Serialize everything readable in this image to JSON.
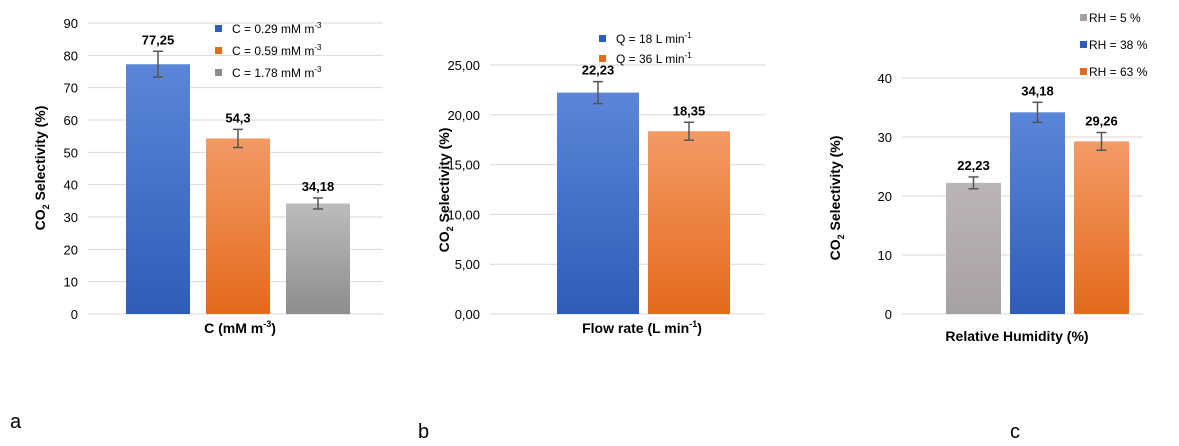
{
  "colors": {
    "blue_top": "#5b86d8",
    "blue_bottom": "#2e5cb8",
    "orange_top": "#f39a66",
    "orange_bottom": "#e46a1c",
    "gray_top": "#bcbcbc",
    "gray_bottom": "#8d8d8d",
    "warmgray_top": "#bcb5b5",
    "warmgray_bottom": "#a8a1a1",
    "grid": "#d9d9d9",
    "axis_text": "#000000",
    "errorbar": "#555555"
  },
  "chart_data": [
    {
      "type": "bar",
      "panel_letter": "a",
      "xlabel": "C (mM m",
      "xlabel_sup": "-3",
      "xlabel_end": ")",
      "ylabel": "CO",
      "ylabel_sub": "2",
      "ylabel_end": " Selectivity (%)",
      "ylim": [
        0,
        90
      ],
      "yticks": [
        "0",
        "10",
        "20",
        "30",
        "40",
        "50",
        "60",
        "70",
        "80",
        "90"
      ],
      "grid": true,
      "legend_position": "top-right",
      "series": [
        {
          "name": "C = 0.29 mM m",
          "name_sup": "-3",
          "value": 77.25,
          "label": "77,25",
          "error": 4.0,
          "color": "blue"
        },
        {
          "name": "C = 0.59 mM m",
          "name_sup": "-3",
          "value": 54.3,
          "label": "54,3",
          "error": 2.8,
          "color": "orange"
        },
        {
          "name": "C = 1.78 mM m",
          "name_sup": "-3",
          "value": 34.18,
          "label": "34,18",
          "error": 1.7,
          "color": "gray"
        }
      ]
    },
    {
      "type": "bar",
      "panel_letter": "b",
      "xlabel": "Flow rate (L min",
      "xlabel_sup": "-1",
      "xlabel_end": ")",
      "ylabel": "CO",
      "ylabel_sub": "2",
      "ylabel_end": " Selectivity (%)",
      "ylim": [
        0,
        25
      ],
      "yticks": [
        "0,00",
        "5,00",
        "10,00",
        "15,00",
        "20,00",
        "25,00"
      ],
      "grid": true,
      "legend_position": "top-right",
      "series": [
        {
          "name": "Q = 18 L min",
          "name_sup": "-1",
          "value": 22.23,
          "label": "22,23",
          "error": 1.1,
          "color": "blue"
        },
        {
          "name": "Q = 36 L min",
          "name_sup": "-1",
          "value": 18.35,
          "label": "18,35",
          "error": 0.9,
          "color": "orange"
        }
      ]
    },
    {
      "type": "bar",
      "panel_letter": "c",
      "xlabel": "Relative Humidity (%)",
      "xlabel_sup": "",
      "xlabel_end": "",
      "ylabel": "CO",
      "ylabel_sub": "2",
      "ylabel_end": " Selectivity (%)",
      "ylim": [
        0,
        40
      ],
      "yticks": [
        "0",
        "10",
        "20",
        "30",
        "40"
      ],
      "grid": true,
      "legend_position": "top-right",
      "series": [
        {
          "name": "RH = 5 %",
          "name_sup": "",
          "value": 22.23,
          "label": "22,23",
          "error": 1.0,
          "color": "warmgray"
        },
        {
          "name": "RH = 38 %",
          "name_sup": "",
          "value": 34.18,
          "label": "34,18",
          "error": 1.7,
          "color": "blue"
        },
        {
          "name": "RH = 63 %",
          "name_sup": "",
          "value": 29.26,
          "label": "29,26",
          "error": 1.5,
          "color": "orange"
        }
      ]
    }
  ]
}
